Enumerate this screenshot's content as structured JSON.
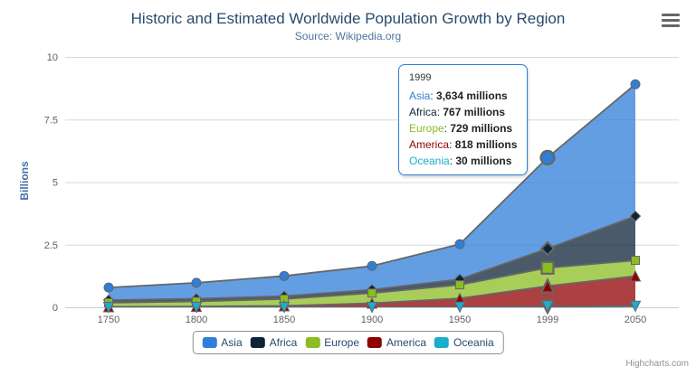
{
  "chart_data": {
    "type": "area",
    "stacking": "normal",
    "title": "Historic and Estimated Worldwide Population Growth by Region",
    "subtitle": "Source: Wikipedia.org",
    "xlabel": "",
    "ylabel": "Billions",
    "ylim": [
      0,
      10
    ],
    "yticks": [
      0,
      2.5,
      5,
      7.5,
      10
    ],
    "categories": [
      "1750",
      "1800",
      "1850",
      "1900",
      "1950",
      "1999",
      "2050"
    ],
    "value_unit": "millions",
    "grid": true,
    "legend_position": "bottom",
    "fill_opacity": 0.75,
    "line_color": "#666666",
    "axis_line_color": "#c0d0e0",
    "grid_color": "#d8d8d8",
    "label_color": "#606060",
    "hover_index": 5,
    "series": [
      {
        "name": "Asia",
        "color": "#2f7ed8",
        "marker": "circle",
        "values": [
          502,
          635,
          809,
          947,
          1402,
          3634,
          5268
        ]
      },
      {
        "name": "Africa",
        "color": "#0d233a",
        "marker": "diamond",
        "values": [
          106,
          107,
          111,
          133,
          221,
          767,
          1766
        ]
      },
      {
        "name": "Europe",
        "color": "#8bbc21",
        "marker": "square",
        "values": [
          163,
          203,
          276,
          408,
          547,
          729,
          628
        ]
      },
      {
        "name": "America",
        "color": "#910000",
        "marker": "triangle",
        "values": [
          18,
          31,
          54,
          156,
          339,
          818,
          1201
        ]
      },
      {
        "name": "Oceania",
        "color": "#1aadce",
        "marker": "triangle-down",
        "values": [
          2,
          2,
          2,
          6,
          13,
          30,
          46
        ]
      }
    ]
  },
  "tooltip": {
    "header": "1999",
    "border_color": "#2f7ed8",
    "rows": [
      {
        "name": "Asia",
        "value": "3,634 millions"
      },
      {
        "name": "Africa",
        "value": "767 millions"
      },
      {
        "name": "Europe",
        "value": "729 millions"
      },
      {
        "name": "America",
        "value": "818 millions"
      },
      {
        "name": "Oceania",
        "value": "30 millions"
      }
    ]
  },
  "credits": {
    "label": "Highcharts.com"
  }
}
